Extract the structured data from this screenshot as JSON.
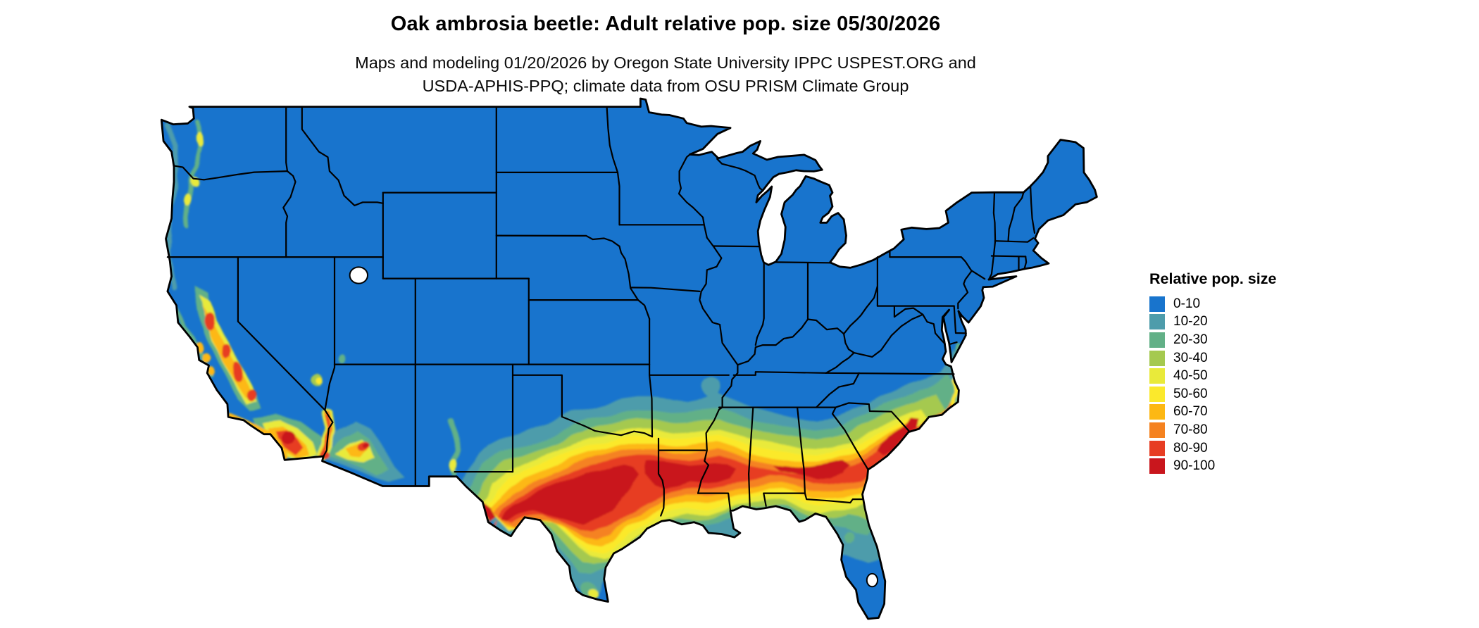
{
  "header": {
    "title": "Oak ambrosia beetle: Adult relative pop. size 05/30/2026",
    "subtitle_line1": "Maps and modeling 01/20/2026 by Oregon State University IPPC USPEST.ORG and",
    "subtitle_line2": "USDA-APHIS-PPQ; climate data from OSU PRISM Climate Group"
  },
  "legend": {
    "title": "Relative pop. size",
    "entries": [
      {
        "label": "0-10",
        "color": "#1874cd"
      },
      {
        "label": "10-20",
        "color": "#4e9cab"
      },
      {
        "label": "20-30",
        "color": "#62b087"
      },
      {
        "label": "30-40",
        "color": "#a5c94f"
      },
      {
        "label": "40-50",
        "color": "#e9ea3a"
      },
      {
        "label": "50-60",
        "color": "#fbe92c"
      },
      {
        "label": "60-70",
        "color": "#fdb813"
      },
      {
        "label": "70-80",
        "color": "#f58220"
      },
      {
        "label": "80-90",
        "color": "#e73d23"
      },
      {
        "label": "90-100",
        "color": "#c9161d"
      }
    ]
  },
  "map": {
    "outline_color": "#000000",
    "water_color": "#ffffff"
  }
}
